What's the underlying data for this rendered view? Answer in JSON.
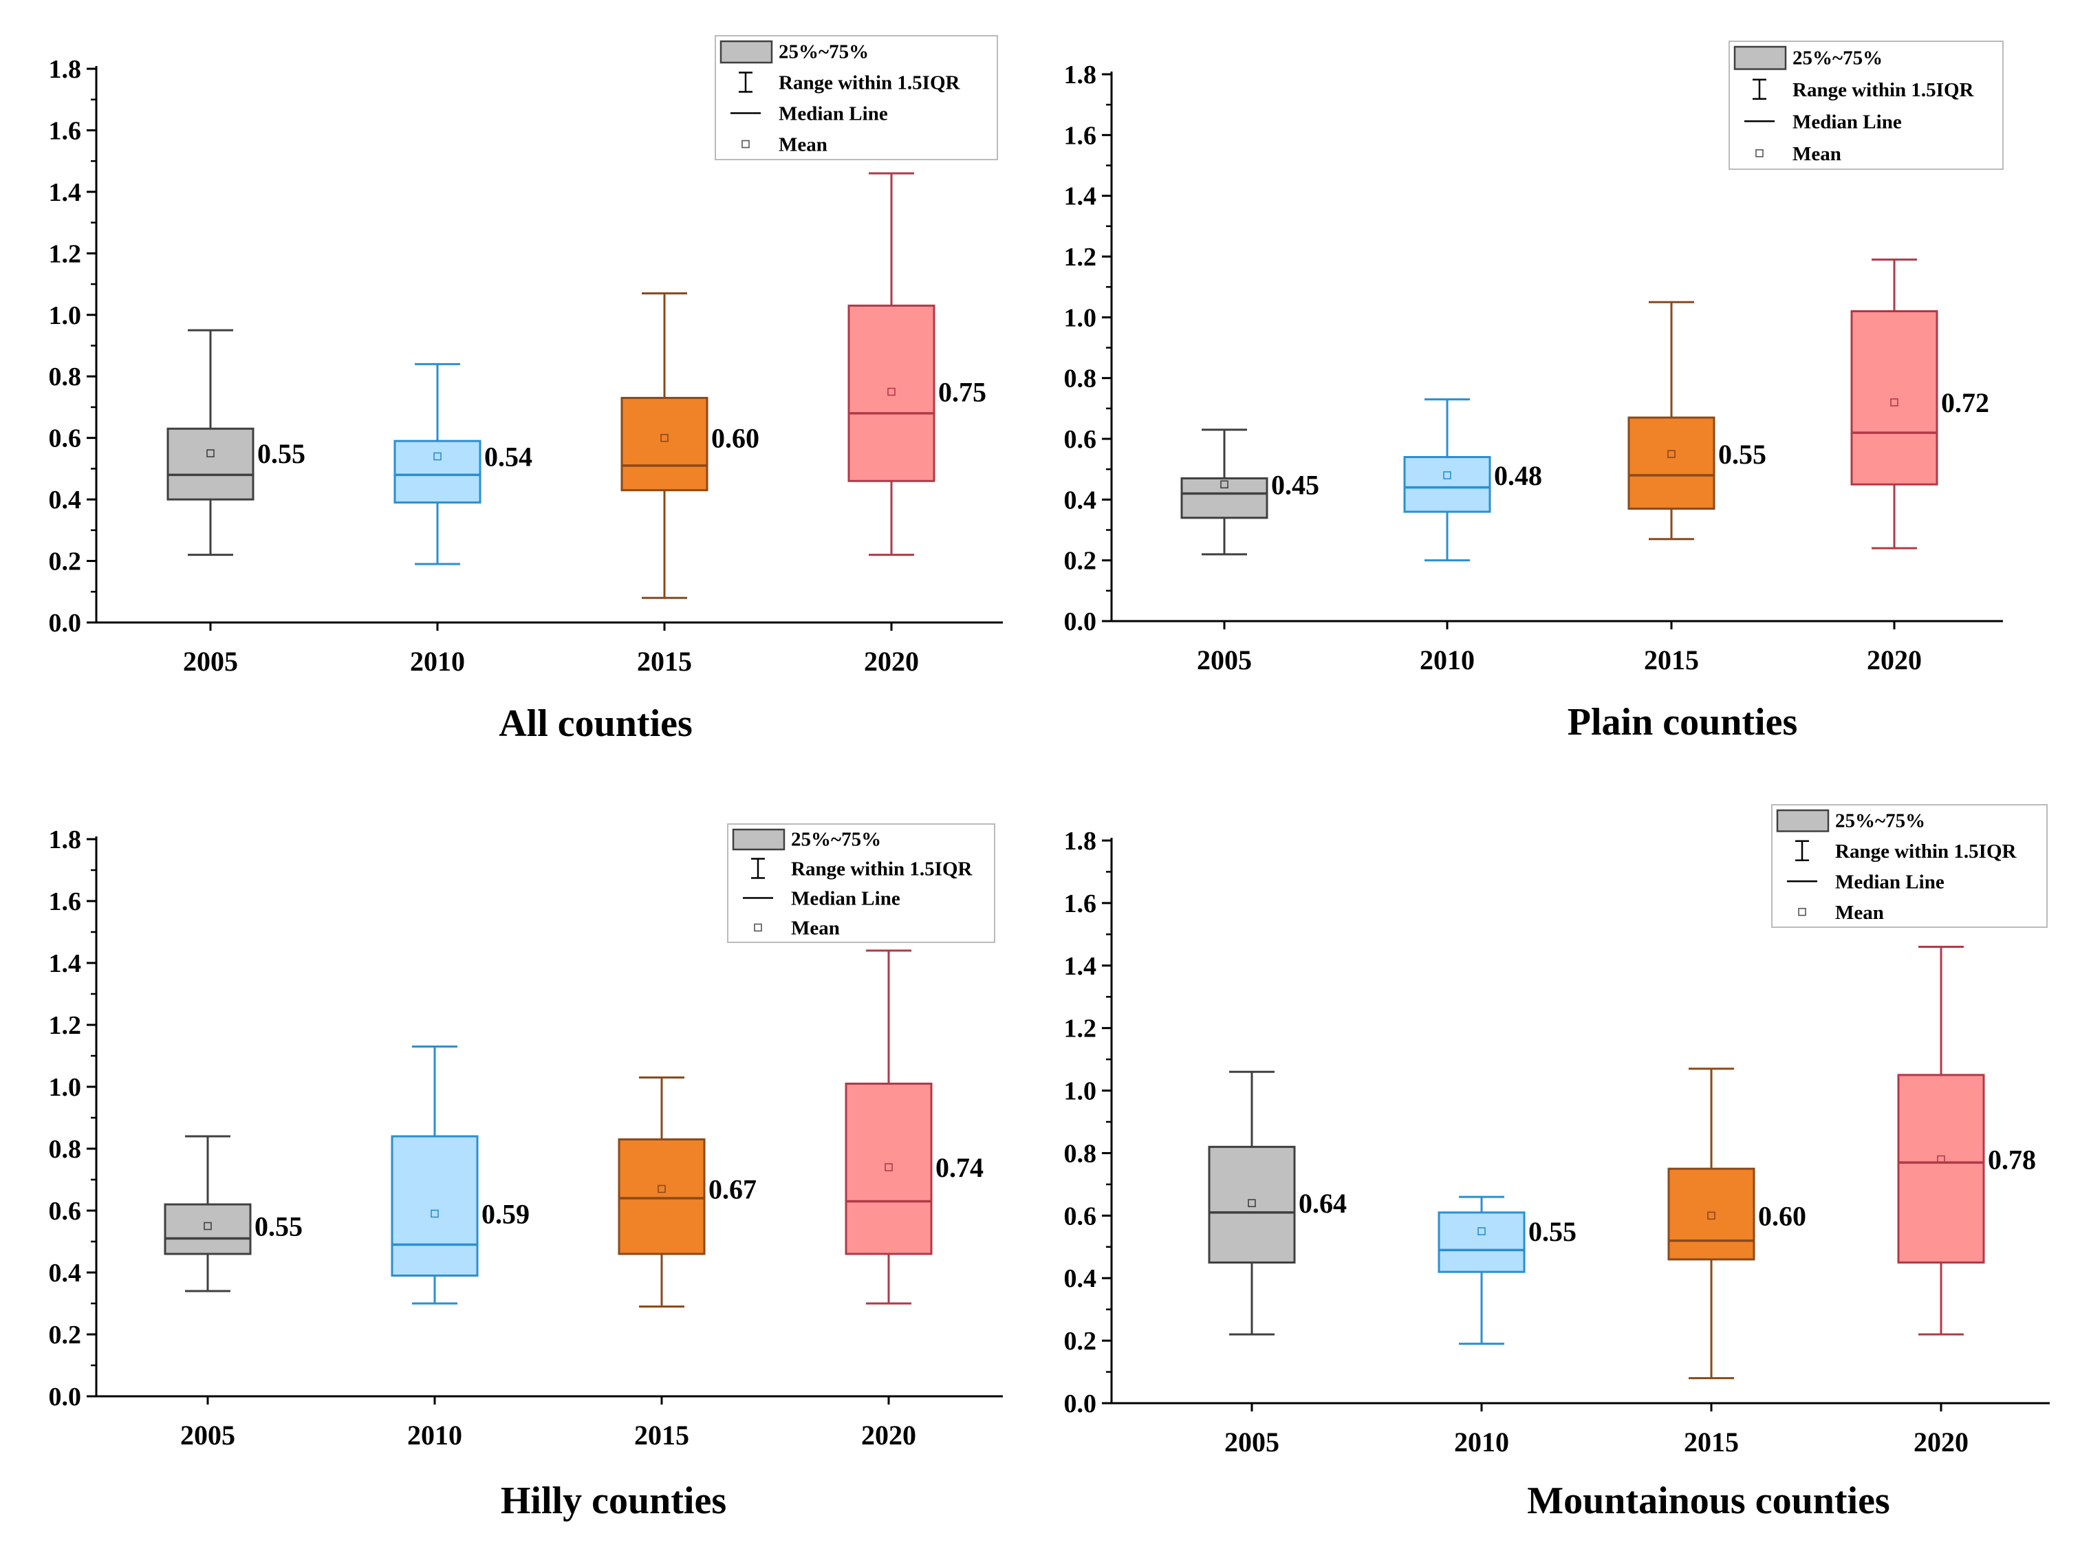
{
  "colors": {
    "2005": {
      "fill": "#c0c0c0",
      "stroke": "#404040"
    },
    "2010": {
      "fill": "#b3e0ff",
      "stroke": "#2b8fd0"
    },
    "2015": {
      "fill": "#f08228",
      "stroke": "#8a4a1a"
    },
    "2020": {
      "fill": "#ff9494",
      "stroke": "#b03a48"
    }
  },
  "legend": {
    "box": "25%~75%",
    "range": "Range within 1.5IQR",
    "median": "Median Line",
    "mean": "Mean"
  },
  "chart_data": [
    {
      "type": "box",
      "title": "All counties",
      "categories": [
        "2005",
        "2010",
        "2015",
        "2020"
      ],
      "ylim": [
        0,
        1.8
      ],
      "yticks": [
        "0.0",
        "0.2",
        "0.4",
        "0.6",
        "0.8",
        "1.0",
        "1.2",
        "1.4",
        "1.6",
        "1.8"
      ],
      "boxes": [
        {
          "min": 0.22,
          "q1": 0.4,
          "median": 0.48,
          "q3": 0.63,
          "max": 0.95,
          "mean": 0.55,
          "label": "0.55"
        },
        {
          "min": 0.19,
          "q1": 0.39,
          "median": 0.48,
          "q3": 0.59,
          "max": 0.84,
          "mean": 0.54,
          "label": "0.54"
        },
        {
          "min": 0.08,
          "q1": 0.43,
          "median": 0.51,
          "q3": 0.73,
          "max": 1.07,
          "mean": 0.6,
          "label": "0.60"
        },
        {
          "min": 0.22,
          "q1": 0.46,
          "median": 0.68,
          "q3": 1.03,
          "max": 1.46,
          "mean": 0.75,
          "label": "0.75"
        }
      ]
    },
    {
      "type": "box",
      "title": "Plain counties",
      "categories": [
        "2005",
        "2010",
        "2015",
        "2020"
      ],
      "ylim": [
        0,
        1.8
      ],
      "yticks": [
        "0.0",
        "0.2",
        "0.4",
        "0.6",
        "0.8",
        "1.0",
        "1.2",
        "1.4",
        "1.6",
        "1.8"
      ],
      "boxes": [
        {
          "min": 0.22,
          "q1": 0.34,
          "median": 0.42,
          "q3": 0.47,
          "max": 0.63,
          "mean": 0.45,
          "label": "0.45"
        },
        {
          "min": 0.2,
          "q1": 0.36,
          "median": 0.44,
          "q3": 0.54,
          "max": 0.73,
          "mean": 0.48,
          "label": "0.48"
        },
        {
          "min": 0.27,
          "q1": 0.37,
          "median": 0.48,
          "q3": 0.67,
          "max": 1.05,
          "mean": 0.55,
          "label": "0.55"
        },
        {
          "min": 0.24,
          "q1": 0.45,
          "median": 0.62,
          "q3": 1.02,
          "max": 1.19,
          "mean": 0.72,
          "label": "0.72"
        }
      ]
    },
    {
      "type": "box",
      "title": "Hilly counties",
      "categories": [
        "2005",
        "2010",
        "2015",
        "2020"
      ],
      "ylim": [
        0,
        1.8
      ],
      "yticks": [
        "0.0",
        "0.2",
        "0.4",
        "0.6",
        "0.8",
        "1.0",
        "1.2",
        "1.4",
        "1.6",
        "1.8"
      ],
      "boxes": [
        {
          "min": 0.34,
          "q1": 0.46,
          "median": 0.51,
          "q3": 0.62,
          "max": 0.84,
          "mean": 0.55,
          "label": "0.55"
        },
        {
          "min": 0.3,
          "q1": 0.39,
          "median": 0.49,
          "q3": 0.84,
          "max": 1.13,
          "mean": 0.59,
          "label": "0.59"
        },
        {
          "min": 0.29,
          "q1": 0.46,
          "median": 0.64,
          "q3": 0.83,
          "max": 1.03,
          "mean": 0.67,
          "label": "0.67"
        },
        {
          "min": 0.3,
          "q1": 0.46,
          "median": 0.63,
          "q3": 1.01,
          "max": 1.44,
          "mean": 0.74,
          "label": "0.74"
        }
      ]
    },
    {
      "type": "box",
      "title": "Mountainous counties",
      "categories": [
        "2005",
        "2010",
        "2015",
        "2020"
      ],
      "ylim": [
        0,
        1.8
      ],
      "yticks": [
        "0.0",
        "0.2",
        "0.4",
        "0.6",
        "0.8",
        "1.0",
        "1.2",
        "1.4",
        "1.6",
        "1.8"
      ],
      "boxes": [
        {
          "min": 0.22,
          "q1": 0.45,
          "median": 0.61,
          "q3": 0.82,
          "max": 1.06,
          "mean": 0.64,
          "label": "0.64"
        },
        {
          "min": 0.19,
          "q1": 0.42,
          "median": 0.49,
          "q3": 0.61,
          "max": 0.66,
          "mean": 0.55,
          "label": "0.55"
        },
        {
          "min": 0.08,
          "q1": 0.46,
          "median": 0.52,
          "q3": 0.75,
          "max": 1.07,
          "mean": 0.6,
          "label": "0.60"
        },
        {
          "min": 0.22,
          "q1": 0.45,
          "median": 0.77,
          "q3": 1.05,
          "max": 1.46,
          "mean": 0.78,
          "label": "0.78"
        }
      ]
    }
  ]
}
